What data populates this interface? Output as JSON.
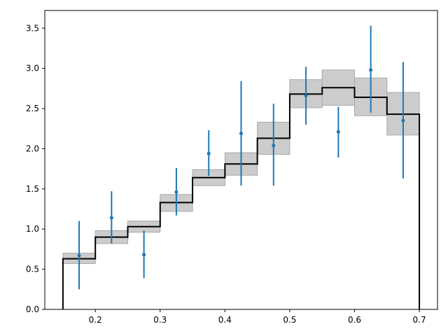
{
  "chart_data": {
    "type": "step-histogram-with-errorbars",
    "title": "",
    "xlabel": "",
    "ylabel": "",
    "xlim": [
      0.122,
      0.728
    ],
    "ylim": [
      0.0,
      3.72
    ],
    "xticks": [
      {
        "value": 0.2,
        "label": "0.2"
      },
      {
        "value": 0.3,
        "label": "0.3"
      },
      {
        "value": 0.4,
        "label": "0.4"
      },
      {
        "value": 0.5,
        "label": "0.5"
      },
      {
        "value": 0.6,
        "label": "0.6"
      },
      {
        "value": 0.7,
        "label": "0.7"
      }
    ],
    "yticks": [
      {
        "value": 0.0,
        "label": "0.0"
      },
      {
        "value": 0.5,
        "label": "0.5"
      },
      {
        "value": 1.0,
        "label": "1.0"
      },
      {
        "value": 1.5,
        "label": "1.5"
      },
      {
        "value": 2.0,
        "label": "2.0"
      },
      {
        "value": 2.5,
        "label": "2.5"
      },
      {
        "value": 3.0,
        "label": "3.0"
      },
      {
        "value": 3.5,
        "label": "3.5"
      }
    ],
    "bin_edges": [
      0.15,
      0.2,
      0.25,
      0.3,
      0.35,
      0.4,
      0.45,
      0.5,
      0.55,
      0.6,
      0.65,
      0.7
    ],
    "model_series": {
      "values": [
        0.63,
        0.9,
        1.03,
        1.33,
        1.64,
        1.81,
        2.13,
        2.68,
        2.76,
        2.64,
        2.43
      ],
      "band_low": [
        0.57,
        0.82,
        0.96,
        1.22,
        1.54,
        1.67,
        1.93,
        2.51,
        2.54,
        2.41,
        2.17
      ],
      "band_high": [
        0.7,
        0.98,
        1.1,
        1.43,
        1.74,
        1.95,
        2.33,
        2.86,
        2.98,
        2.88,
        2.7
      ],
      "line_color": "#000000",
      "band_color": "#cccccc",
      "band_edge_color": "#a9a9a9"
    },
    "data_series": {
      "x": [
        0.175,
        0.225,
        0.275,
        0.325,
        0.375,
        0.425,
        0.475,
        0.525,
        0.575,
        0.625,
        0.675
      ],
      "y": [
        0.67,
        1.14,
        0.68,
        1.46,
        1.94,
        2.19,
        2.04,
        2.66,
        2.21,
        2.98,
        2.35
      ],
      "yerr_low": [
        0.25,
        0.82,
        0.39,
        1.17,
        1.66,
        1.54,
        1.54,
        2.3,
        1.89,
        2.45,
        1.63
      ],
      "yerr_high": [
        1.1,
        1.47,
        0.98,
        1.76,
        2.23,
        2.84,
        2.56,
        3.02,
        2.52,
        3.53,
        3.08
      ],
      "color": "#1f77b4"
    },
    "grid": false,
    "legend": "none"
  }
}
